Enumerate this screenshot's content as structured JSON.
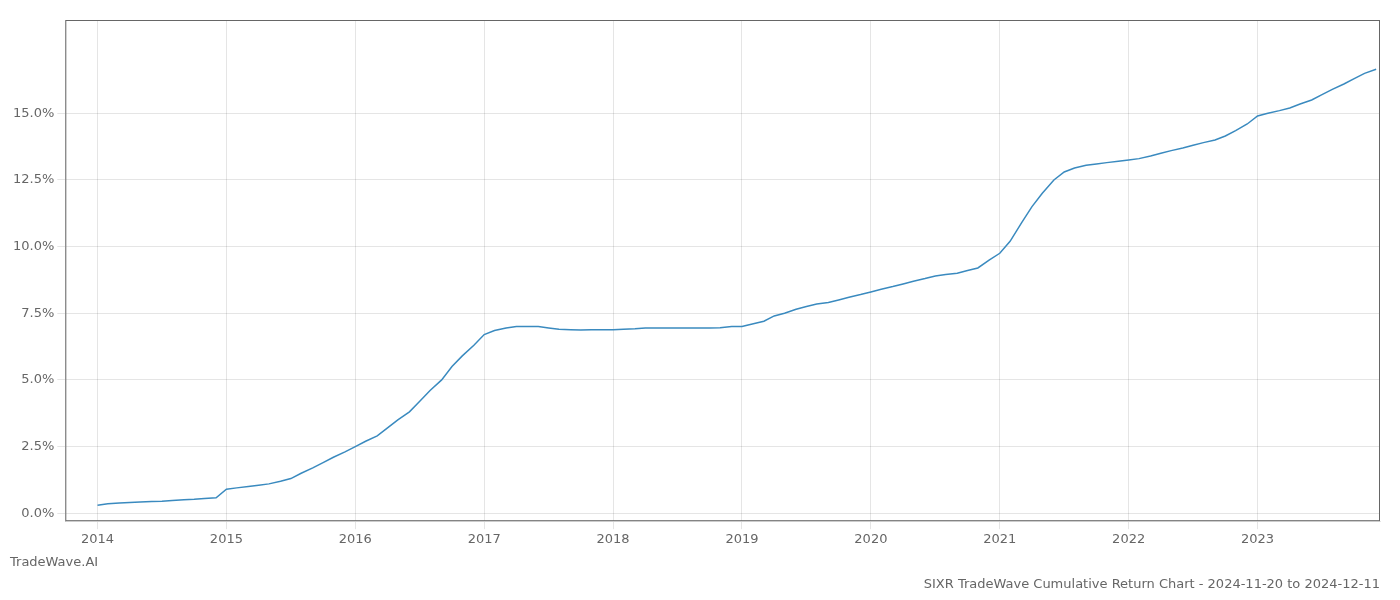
{
  "chart_data": {
    "type": "line",
    "title": "SIXR TradeWave Cumulative Return Chart - 2024-11-20 to 2024-12-11",
    "annotations": [
      "TradeWave.AI"
    ],
    "x": [
      2014.0,
      2014.08,
      2014.17,
      2014.25,
      2014.33,
      2014.42,
      2014.5,
      2014.58,
      2014.67,
      2014.75,
      2014.83,
      2014.92,
      2015.0,
      2015.08,
      2015.17,
      2015.25,
      2015.33,
      2015.42,
      2015.5,
      2015.58,
      2015.67,
      2015.75,
      2015.83,
      2015.92,
      2016.0,
      2016.08,
      2016.17,
      2016.25,
      2016.33,
      2016.42,
      2016.5,
      2016.58,
      2016.67,
      2016.75,
      2016.83,
      2016.92,
      2017.0,
      2017.08,
      2017.17,
      2017.25,
      2017.33,
      2017.42,
      2017.5,
      2017.58,
      2017.67,
      2017.75,
      2017.83,
      2017.92,
      2018.0,
      2018.08,
      2018.17,
      2018.25,
      2018.33,
      2018.42,
      2018.5,
      2018.58,
      2018.67,
      2018.75,
      2018.83,
      2018.92,
      2019.0,
      2019.08,
      2019.17,
      2019.25,
      2019.33,
      2019.42,
      2019.5,
      2019.58,
      2019.67,
      2019.75,
      2019.83,
      2019.92,
      2020.0,
      2020.08,
      2020.17,
      2020.25,
      2020.33,
      2020.42,
      2020.5,
      2020.58,
      2020.67,
      2020.75,
      2020.83,
      2020.92,
      2021.0,
      2021.08,
      2021.17,
      2021.25,
      2021.33,
      2021.42,
      2021.5,
      2021.58,
      2021.67,
      2021.75,
      2021.83,
      2021.92,
      2022.0,
      2022.08,
      2022.17,
      2022.25,
      2022.33,
      2022.42,
      2022.5,
      2022.58,
      2022.67,
      2022.75,
      2022.83,
      2022.92,
      2023.0,
      2023.08,
      2023.17,
      2023.25,
      2023.33,
      2023.42,
      2023.5,
      2023.58,
      2023.67,
      2023.75,
      2023.83,
      2023.92
    ],
    "values": [
      0.3,
      0.35,
      0.38,
      0.4,
      0.42,
      0.44,
      0.45,
      0.48,
      0.5,
      0.52,
      0.55,
      0.58,
      0.9,
      0.95,
      1.0,
      1.05,
      1.1,
      1.2,
      1.3,
      1.5,
      1.7,
      1.9,
      2.1,
      2.3,
      2.5,
      2.7,
      2.9,
      3.2,
      3.5,
      3.8,
      4.2,
      4.6,
      5.0,
      5.5,
      5.9,
      6.3,
      6.7,
      6.85,
      6.95,
      7.0,
      7.0,
      7.0,
      6.95,
      6.9,
      6.88,
      6.87,
      6.88,
      6.88,
      6.88,
      6.9,
      6.92,
      6.95,
      6.95,
      6.95,
      6.95,
      6.95,
      6.95,
      6.95,
      6.96,
      7.0,
      7.0,
      7.1,
      7.2,
      7.4,
      7.5,
      7.65,
      7.75,
      7.85,
      7.9,
      8.0,
      8.1,
      8.2,
      8.3,
      8.4,
      8.5,
      8.6,
      8.7,
      8.8,
      8.9,
      8.95,
      9.0,
      9.1,
      9.2,
      9.5,
      9.75,
      10.2,
      10.9,
      11.5,
      12.0,
      12.5,
      12.8,
      12.95,
      13.05,
      13.1,
      13.15,
      13.2,
      13.25,
      13.3,
      13.4,
      13.5,
      13.6,
      13.7,
      13.8,
      13.9,
      14.0,
      14.15,
      14.35,
      14.6,
      14.9,
      15.0,
      15.1,
      15.2,
      15.35,
      15.5,
      15.7,
      15.9,
      16.1,
      16.3,
      16.5,
      16.65
    ],
    "color": "#3a8abf",
    "xlim": [
      2013.75,
      2023.95
    ],
    "ylim": [
      -0.3,
      18.5
    ],
    "xticks": [
      2014,
      2015,
      2016,
      2017,
      2018,
      2019,
      2020,
      2021,
      2022,
      2023
    ],
    "yticks": [
      {
        "value": 0.0,
        "label": "0.0%"
      },
      {
        "value": 2.5,
        "label": "2.5%"
      },
      {
        "value": 5.0,
        "label": "5.0%"
      },
      {
        "value": 7.5,
        "label": "7.5%"
      },
      {
        "value": 10.0,
        "label": "10.0%"
      },
      {
        "value": 12.5,
        "label": "12.5%"
      },
      {
        "value": 15.0,
        "label": "15.0%"
      }
    ],
    "grid": true
  }
}
